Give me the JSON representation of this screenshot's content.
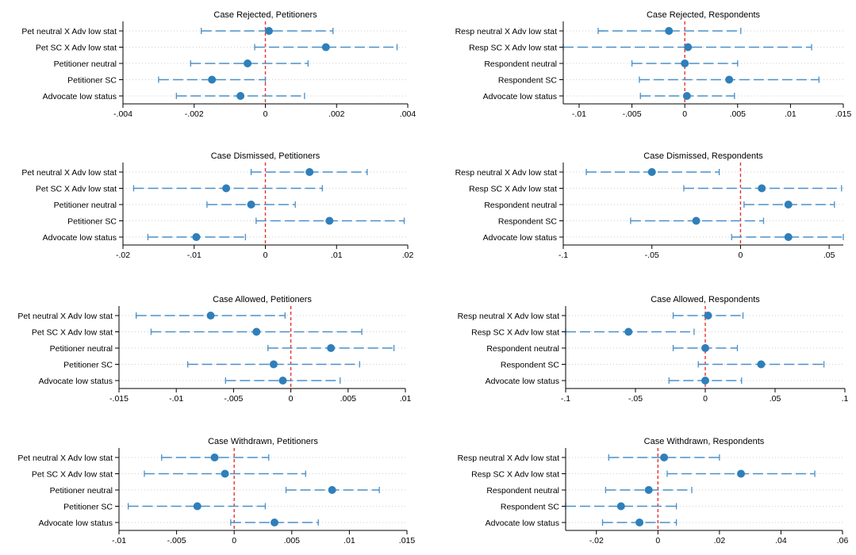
{
  "colors": {
    "ci": "#4a90c8",
    "point": "#2f7fba",
    "grid": "#cfcfcf",
    "ref": "#e8322f",
    "axis": "#000000"
  },
  "chart_data": [
    {
      "type": "coefficient-plot",
      "title": "Case Rejected, Petitioners",
      "xlim": [
        -0.004,
        0.004
      ],
      "xticks": [
        -0.004,
        -0.002,
        0,
        0.002,
        0.004
      ],
      "xtick_labels": [
        "-.004",
        "-.002",
        "0",
        ".002",
        ".004"
      ],
      "ref_line": 0,
      "rows": [
        {
          "label": "Pet neutral X Adv low stat",
          "coef": 0.0001,
          "lo": -0.0018,
          "hi": 0.0019
        },
        {
          "label": "Pet SC X Adv low stat",
          "coef": 0.0017,
          "lo": -0.0003,
          "hi": 0.0037
        },
        {
          "label": "Petitioner neutral",
          "coef": -0.0005,
          "lo": -0.0021,
          "hi": 0.0012
        },
        {
          "label": "Petitioner SC",
          "coef": -0.0015,
          "lo": -0.003,
          "hi": 0.0
        },
        {
          "label": "Advocate low status",
          "coef": -0.0007,
          "lo": -0.0025,
          "hi": 0.0011
        }
      ]
    },
    {
      "type": "coefficient-plot",
      "title": "Case Rejected, Respondents",
      "xlim": [
        -0.0115,
        0.015
      ],
      "xticks": [
        -0.01,
        -0.005,
        0,
        0.005,
        0.01,
        0.015
      ],
      "xtick_labels": [
        "-.01",
        "-.005",
        "0",
        ".005",
        ".01",
        ".015"
      ],
      "ref_line": 0,
      "rows": [
        {
          "label": "Resp neutral X Adv low stat",
          "coef": -0.0015,
          "lo": -0.0082,
          "hi": 0.0053
        },
        {
          "label": "Resp SC X Adv low stat",
          "coef": 0.0003,
          "lo": -0.0115,
          "hi": 0.012
        },
        {
          "label": "Respondent neutral",
          "coef": 0.0,
          "lo": -0.005,
          "hi": 0.005
        },
        {
          "label": "Respondent SC",
          "coef": 0.0042,
          "lo": -0.0043,
          "hi": 0.0127
        },
        {
          "label": "Advocate low status",
          "coef": 0.0002,
          "lo": -0.0042,
          "hi": 0.0047
        }
      ]
    },
    {
      "type": "coefficient-plot",
      "title": "Case Dismissed, Petitioners",
      "xlim": [
        -0.02,
        0.02
      ],
      "xticks": [
        -0.02,
        -0.01,
        0,
        0.01,
        0.02
      ],
      "xtick_labels": [
        "-.02",
        "-.01",
        "0",
        ".01",
        ".02"
      ],
      "ref_line": 0,
      "rows": [
        {
          "label": "Pet neutral X Adv low stat",
          "coef": 0.0062,
          "lo": -0.002,
          "hi": 0.0143
        },
        {
          "label": "Pet SC X Adv low stat",
          "coef": -0.0055,
          "lo": -0.0185,
          "hi": 0.008
        },
        {
          "label": "Petitioner neutral",
          "coef": -0.002,
          "lo": -0.0082,
          "hi": 0.0042
        },
        {
          "label": "Petitioner SC",
          "coef": 0.009,
          "lo": -0.0013,
          "hi": 0.0195
        },
        {
          "label": "Advocate low status",
          "coef": -0.0097,
          "lo": -0.0165,
          "hi": -0.0028
        }
      ]
    },
    {
      "type": "coefficient-plot",
      "title": "Case Dismissed, Respondents",
      "xlim": [
        -0.1,
        0.058
      ],
      "xticks": [
        -0.1,
        -0.05,
        0,
        0.05
      ],
      "xtick_labels": [
        "-.1",
        "-.05",
        "0",
        ".05"
      ],
      "ref_line": 0,
      "rows": [
        {
          "label": "Resp neutral X Adv low stat",
          "coef": -0.05,
          "lo": -0.087,
          "hi": -0.012
        },
        {
          "label": "Resp SC X Adv low stat",
          "coef": 0.012,
          "lo": -0.032,
          "hi": 0.057
        },
        {
          "label": "Respondent neutral",
          "coef": 0.027,
          "lo": 0.002,
          "hi": 0.053
        },
        {
          "label": "Respondent SC",
          "coef": -0.025,
          "lo": -0.062,
          "hi": 0.013
        },
        {
          "label": "Advocate low status",
          "coef": 0.027,
          "lo": -0.005,
          "hi": 0.058
        }
      ]
    },
    {
      "type": "coefficient-plot",
      "title": "Case Allowed, Petitioners",
      "xlim": [
        -0.015,
        0.01
      ],
      "xticks": [
        -0.015,
        -0.01,
        -0.005,
        0,
        0.005,
        0.01
      ],
      "xtick_labels": [
        "-.015",
        "-.01",
        "-.005",
        "0",
        ".005",
        ".01"
      ],
      "ref_line": 0,
      "rows": [
        {
          "label": "Pet neutral X Adv low stat",
          "coef": -0.007,
          "lo": -0.0135,
          "hi": -0.0005
        },
        {
          "label": "Pet SC X Adv low stat",
          "coef": -0.003,
          "lo": -0.0122,
          "hi": 0.0062
        },
        {
          "label": "Petitioner neutral",
          "coef": 0.0035,
          "lo": -0.002,
          "hi": 0.009
        },
        {
          "label": "Petitioner SC",
          "coef": -0.0015,
          "lo": -0.009,
          "hi": 0.006
        },
        {
          "label": "Advocate low status",
          "coef": -0.0007,
          "lo": -0.0057,
          "hi": 0.0043
        }
      ]
    },
    {
      "type": "coefficient-plot",
      "title": "Case Allowed, Respondents",
      "xlim": [
        -0.1,
        0.1
      ],
      "xticks": [
        -0.1,
        -0.05,
        0,
        0.05,
        0.1
      ],
      "xtick_labels": [
        "-.1",
        "-.05",
        "0",
        ".05",
        ".1"
      ],
      "ref_line": 0,
      "rows": [
        {
          "label": "Resp neutral X Adv low stat",
          "coef": 0.002,
          "lo": -0.023,
          "hi": 0.027
        },
        {
          "label": "Resp SC X Adv low stat",
          "coef": -0.055,
          "lo": -0.1,
          "hi": -0.008
        },
        {
          "label": "Respondent neutral",
          "coef": 0.0,
          "lo": -0.023,
          "hi": 0.023
        },
        {
          "label": "Respondent SC",
          "coef": 0.04,
          "lo": -0.005,
          "hi": 0.085
        },
        {
          "label": "Advocate low status",
          "coef": 0.0,
          "lo": -0.026,
          "hi": 0.026
        }
      ]
    },
    {
      "type": "coefficient-plot",
      "title": "Case Withdrawn, Petitioners",
      "xlim": [
        -0.01,
        0.015
      ],
      "xticks": [
        -0.01,
        -0.005,
        0,
        0.005,
        0.01,
        0.015
      ],
      "xtick_labels": [
        "-.01",
        "-.005",
        "0",
        ".005",
        ".01",
        ".015"
      ],
      "ref_line": 0,
      "rows": [
        {
          "label": "Pet neutral X Adv low stat",
          "coef": -0.0017,
          "lo": -0.0063,
          "hi": 0.003
        },
        {
          "label": "Pet SC X Adv low stat",
          "coef": -0.0008,
          "lo": -0.0078,
          "hi": 0.0062
        },
        {
          "label": "Petitioner neutral",
          "coef": 0.0085,
          "lo": 0.0045,
          "hi": 0.0126
        },
        {
          "label": "Petitioner SC",
          "coef": -0.0032,
          "lo": -0.0092,
          "hi": 0.0027
        },
        {
          "label": "Advocate low status",
          "coef": 0.0035,
          "lo": -0.0003,
          "hi": 0.0073
        }
      ]
    },
    {
      "type": "coefficient-plot",
      "title": "Case Withdrawn, Respondents",
      "xlim": [
        -0.03,
        0.06
      ],
      "xticks": [
        -0.02,
        0,
        0.02,
        0.04,
        0.06
      ],
      "xtick_labels": [
        "-.02",
        "0",
        ".02",
        ".04",
        ".06"
      ],
      "ref_line": 0,
      "rows": [
        {
          "label": "Resp neutral X Adv low stat",
          "coef": 0.002,
          "lo": -0.016,
          "hi": 0.02
        },
        {
          "label": "Resp SC X Adv low stat",
          "coef": 0.027,
          "lo": 0.003,
          "hi": 0.051
        },
        {
          "label": "Respondent neutral",
          "coef": -0.003,
          "lo": -0.017,
          "hi": 0.011
        },
        {
          "label": "Respondent SC",
          "coef": -0.012,
          "lo": -0.03,
          "hi": 0.006
        },
        {
          "label": "Advocate low status",
          "coef": -0.006,
          "lo": -0.018,
          "hi": 0.006
        }
      ]
    }
  ]
}
